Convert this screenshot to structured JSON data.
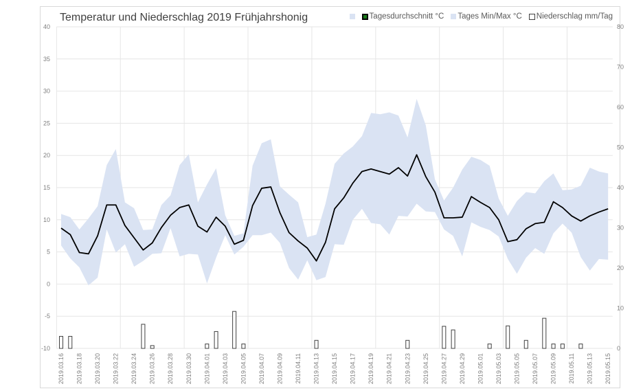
{
  "chart_data": {
    "type": "line",
    "title": "Temperatur und Niederschlag 2019 Frühjahrshonig",
    "legend": [
      "Tagesdurchschnitt °C",
      "Tages Min/Max °C",
      "Niederschlag mm/Tag"
    ],
    "legend_placement": "top-right",
    "y_left": {
      "min": -10,
      "max": 40,
      "step": 5,
      "ticks": [
        "-10",
        "-5",
        "0",
        "5",
        "10",
        "15",
        "20",
        "25",
        "30",
        "35",
        "40"
      ]
    },
    "y_right": {
      "min": 0,
      "max": 80,
      "step": 10,
      "ticks": [
        "0",
        "10",
        "20",
        "30",
        "40",
        "50",
        "60",
        "70",
        "80"
      ]
    },
    "x": [
      "2019.03.16",
      "2019.03.17",
      "2019.03.18",
      "2019.03.19",
      "2019.03.20",
      "2019.03.21",
      "2019.03.22",
      "2019.03.23",
      "2019.03.24",
      "2019.03.25",
      "2019.03.26",
      "2019.03.27",
      "2019.03.28",
      "2019.03.29",
      "2019.03.30",
      "2019.03.31",
      "2019.04.01",
      "2019.04.02",
      "2019.04.03",
      "2019.04.04",
      "2019.04.05",
      "2019.04.06",
      "2019.04.07",
      "2019.04.08",
      "2019.04.09",
      "2019.04.10",
      "2019.04.11",
      "2019.04.12",
      "2019.04.13",
      "2019.04.14",
      "2019.04.15",
      "2019.04.16",
      "2019.04.17",
      "2019.04.18",
      "2019.04.19",
      "2019.04.20",
      "2019.04.21",
      "2019.04.22",
      "2019.04.23",
      "2019.04.24",
      "2019.04.25",
      "2019.04.26",
      "2019.04.27",
      "2019.04.28",
      "2019.04.29",
      "2019.04.30",
      "2019.05.01",
      "2019.05.02",
      "2019.05.03",
      "2019.05.04",
      "2019.05.05",
      "2019.05.06",
      "2019.05.07",
      "2019.05.08",
      "2019.05.09",
      "2019.05.10",
      "2019.05.11",
      "2019.05.12",
      "2019.05.13",
      "2019.05.14",
      "2019.05.15"
    ],
    "series": [
      {
        "name": "Tagesdurchschnitt °C",
        "axis": "left",
        "color": "#000000",
        "values": [
          8.7,
          7.7,
          4.9,
          4.7,
          7.5,
          12.3,
          12.3,
          9.1,
          7.2,
          5.3,
          6.4,
          8.8,
          10.7,
          11.9,
          12.3,
          9.0,
          8.1,
          10.4,
          9.0,
          6.2,
          6.8,
          12.2,
          14.9,
          15.1,
          11.1,
          8.0,
          6.7,
          5.6,
          3.6,
          6.5,
          11.7,
          13.4,
          15.7,
          17.5,
          17.9,
          17.5,
          17.1,
          18.1,
          16.8,
          20.1,
          16.7,
          14.3,
          10.3,
          10.3,
          10.4,
          13.6,
          12.7,
          11.9,
          10.0,
          6.6,
          6.9,
          8.6,
          9.4,
          9.6,
          12.8,
          11.9,
          10.6,
          9.8,
          10.6,
          11.2,
          11.7
        ]
      },
      {
        "name": "Tages Max °C",
        "axis": "left",
        "color": "#dae3f3",
        "values": [
          10.9,
          10.4,
          8.5,
          10.2,
          12.1,
          18.5,
          21.0,
          12.7,
          11.8,
          8.4,
          8.5,
          12.3,
          13.8,
          18.5,
          20.2,
          12.7,
          15.5,
          18.0,
          10.7,
          7.5,
          7.9,
          18.4,
          21.9,
          22.5,
          15.2,
          13.9,
          12.7,
          7.3,
          7.7,
          12.5,
          18.7,
          20.3,
          21.4,
          23.0,
          26.6,
          26.4,
          26.7,
          26.2,
          22.8,
          28.8,
          24.7,
          16.3,
          13.0,
          15.0,
          17.8,
          19.8,
          19.3,
          18.4,
          13.3,
          10.6,
          12.9,
          14.3,
          14.1,
          16.0,
          17.2,
          14.6,
          14.7,
          15.3,
          18.1,
          17.5,
          17.2
        ]
      },
      {
        "name": "Tages Min °C",
        "axis": "left",
        "color": "#dae3f3",
        "values": [
          6.0,
          4.0,
          2.6,
          -0.2,
          1.0,
          8.5,
          4.9,
          6.2,
          2.7,
          3.6,
          4.7,
          4.8,
          8.7,
          4.3,
          4.7,
          4.6,
          0.1,
          4.1,
          7.6,
          4.6,
          5.8,
          7.6,
          7.6,
          8.0,
          6.4,
          2.5,
          0.7,
          3.7,
          0.6,
          1.1,
          6.2,
          6.1,
          10.0,
          11.7,
          9.5,
          9.3,
          7.7,
          10.6,
          10.5,
          12.5,
          11.3,
          11.2,
          8.5,
          7.5,
          4.3,
          9.6,
          8.9,
          8.4,
          7.4,
          3.9,
          1.6,
          4.1,
          5.6,
          4.7,
          7.9,
          9.4,
          8.0,
          4.2,
          2.1,
          3.9,
          3.8
        ]
      },
      {
        "name": "Niederschlag mm/Tag",
        "axis": "right",
        "type": "bar",
        "color": "#ffffff",
        "values": [
          3,
          3,
          0,
          0,
          0,
          0,
          0,
          0,
          0,
          6,
          0.7,
          0,
          0,
          0,
          0,
          0,
          1.1,
          4.2,
          0,
          9.2,
          1.1,
          0,
          0,
          0,
          0,
          0,
          0,
          0,
          2,
          0,
          0,
          0,
          0,
          0,
          0,
          0,
          0,
          0,
          2,
          0,
          0,
          0,
          5.5,
          4.6,
          0,
          0,
          0,
          1.1,
          0,
          5.6,
          0,
          2,
          0,
          7.5,
          1.1,
          1.1,
          0,
          1.1,
          0,
          0,
          0
        ]
      }
    ],
    "grid": true
  }
}
